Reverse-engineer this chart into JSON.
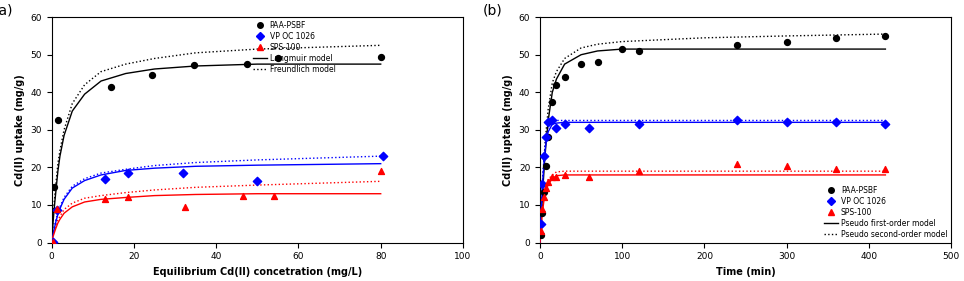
{
  "fig_width": 9.64,
  "fig_height": 2.81,
  "dpi": 100,
  "plot_a": {
    "label": "(a)",
    "xlabel": "Equilibrium Cd(II) concetration (mg/L)",
    "ylabel": "Cd(II) uptake (mg/g)",
    "xlim": [
      0,
      100
    ],
    "ylim": [
      0,
      60
    ],
    "xticks": [
      0,
      20,
      40,
      60,
      80,
      100
    ],
    "yticks": [
      0,
      10,
      20,
      30,
      40,
      50,
      60
    ],
    "black_dots_x": [
      0.5,
      1.5,
      14.5,
      24.5,
      34.5,
      47.5,
      55.0,
      80.0
    ],
    "black_dots_y": [
      14.8,
      32.5,
      41.3,
      44.7,
      47.3,
      47.5,
      49.2,
      49.5
    ],
    "blue_dots_x": [
      0.3,
      1.2,
      13.0,
      18.5,
      32.0,
      50.0,
      80.5
    ],
    "blue_dots_y": [
      0.2,
      8.7,
      17.0,
      18.5,
      18.5,
      16.5,
      23.0
    ],
    "red_triangles_x": [
      0.3,
      1.2,
      13.0,
      18.5,
      32.5,
      46.5,
      54.0,
      80.0
    ],
    "red_triangles_y": [
      0.1,
      9.0,
      11.5,
      12.0,
      9.5,
      12.5,
      12.5,
      19.0
    ],
    "langmuir_black_x": [
      0.0,
      0.3,
      0.6,
      1.0,
      1.5,
      2.0,
      3.0,
      5.0,
      8.0,
      12.0,
      18.0,
      25.0,
      35.0,
      50.0,
      65.0,
      80.0
    ],
    "langmuir_black_y": [
      0.0,
      5.0,
      9.0,
      13.5,
      19.0,
      23.0,
      28.5,
      35.0,
      39.5,
      43.0,
      45.0,
      46.2,
      47.0,
      47.5,
      47.5,
      47.5
    ],
    "freundlich_black_x": [
      0.0,
      0.3,
      0.6,
      1.0,
      1.5,
      2.0,
      3.0,
      5.0,
      8.0,
      12.0,
      18.0,
      25.0,
      35.0,
      50.0,
      65.0,
      80.0
    ],
    "freundlich_black_y": [
      0.0,
      6.0,
      10.5,
      15.5,
      21.0,
      24.5,
      30.0,
      37.0,
      42.0,
      45.5,
      47.5,
      49.0,
      50.5,
      51.5,
      52.0,
      52.5
    ],
    "langmuir_blue_x": [
      0.0,
      0.3,
      0.6,
      1.0,
      1.5,
      2.0,
      3.0,
      5.0,
      8.0,
      12.0,
      18.0,
      25.0,
      35.0,
      50.0,
      65.0,
      80.0
    ],
    "langmuir_blue_y": [
      0.0,
      2.0,
      3.5,
      5.5,
      7.5,
      9.0,
      11.5,
      14.5,
      16.5,
      18.0,
      19.2,
      19.8,
      20.3,
      20.6,
      20.8,
      21.0
    ],
    "freundlich_blue_x": [
      0.0,
      0.3,
      0.6,
      1.0,
      1.5,
      2.0,
      3.0,
      5.0,
      8.0,
      12.0,
      18.0,
      25.0,
      35.0,
      50.0,
      65.0,
      80.0
    ],
    "freundlich_blue_y": [
      0.0,
      2.5,
      4.0,
      6.0,
      8.0,
      9.5,
      12.0,
      15.0,
      17.0,
      18.5,
      19.5,
      20.5,
      21.3,
      22.0,
      22.5,
      23.0
    ],
    "langmuir_red_x": [
      0.0,
      0.3,
      0.6,
      1.0,
      1.5,
      2.0,
      3.0,
      5.0,
      8.0,
      12.0,
      18.0,
      25.0,
      35.0,
      50.0,
      65.0,
      80.0
    ],
    "langmuir_red_y": [
      0.0,
      1.5,
      2.5,
      3.8,
      5.2,
      6.2,
      7.8,
      9.5,
      10.8,
      11.5,
      12.0,
      12.5,
      12.8,
      13.0,
      13.0,
      13.0
    ],
    "freundlich_red_x": [
      0.0,
      0.3,
      0.6,
      1.0,
      1.5,
      2.0,
      3.0,
      5.0,
      8.0,
      12.0,
      18.0,
      25.0,
      35.0,
      50.0,
      65.0,
      80.0
    ],
    "freundlich_red_y": [
      0.0,
      1.8,
      3.0,
      4.5,
      6.0,
      7.0,
      8.8,
      10.5,
      11.8,
      12.5,
      13.3,
      14.0,
      14.7,
      15.3,
      15.8,
      16.3
    ]
  },
  "plot_b": {
    "label": "(b)",
    "xlabel": "Time (min)",
    "ylabel": "Cd(II) uptake (mg/g)",
    "xlim": [
      0,
      500
    ],
    "ylim": [
      0,
      60
    ],
    "xticks": [
      0,
      100,
      200,
      300,
      400,
      500
    ],
    "yticks": [
      0,
      10,
      20,
      30,
      40,
      50,
      60
    ],
    "black_dots_x": [
      1,
      3,
      5,
      7,
      10,
      15,
      20,
      30,
      50,
      70,
      100,
      120,
      240,
      300,
      360,
      420
    ],
    "black_dots_y": [
      2.0,
      8.0,
      13.5,
      20.5,
      28.0,
      37.5,
      42.0,
      44.0,
      47.5,
      48.0,
      51.5,
      51.0,
      52.5,
      53.5,
      54.5,
      55.0
    ],
    "blue_dots_x": [
      1,
      3,
      5,
      7,
      10,
      15,
      20,
      30,
      60,
      120,
      240,
      300,
      360,
      420
    ],
    "blue_dots_y": [
      5.0,
      15.5,
      23.0,
      28.0,
      32.0,
      32.5,
      30.5,
      31.5,
      30.5,
      31.5,
      32.5,
      32.0,
      32.0,
      31.5
    ],
    "red_triangles_x": [
      1,
      3,
      5,
      7,
      10,
      15,
      20,
      30,
      60,
      120,
      240,
      300,
      360,
      420
    ],
    "red_triangles_y": [
      3.0,
      9.0,
      12.0,
      14.5,
      16.0,
      17.5,
      17.5,
      18.0,
      17.5,
      19.0,
      21.0,
      20.5,
      19.5,
      19.5
    ],
    "pfo_black_x": [
      0,
      1,
      2,
      3,
      5,
      7,
      10,
      15,
      20,
      30,
      50,
      70,
      100,
      150,
      200,
      300,
      420
    ],
    "pfo_black_y": [
      0,
      4.5,
      8.5,
      12.5,
      19.5,
      25.5,
      32.5,
      40.0,
      43.5,
      47.5,
      50.0,
      51.0,
      51.5,
      51.5,
      51.5,
      51.5,
      51.5
    ],
    "pso_black_x": [
      0,
      1,
      2,
      3,
      5,
      7,
      10,
      15,
      20,
      30,
      50,
      70,
      100,
      150,
      200,
      300,
      420
    ],
    "pso_black_y": [
      0,
      5.5,
      10.5,
      15.0,
      22.5,
      28.5,
      35.5,
      42.5,
      45.5,
      49.0,
      51.8,
      52.8,
      53.5,
      54.0,
      54.5,
      55.0,
      55.5
    ],
    "pfo_blue_x": [
      0,
      1,
      2,
      3,
      5,
      7,
      10,
      15,
      20,
      30,
      60,
      120,
      240,
      420
    ],
    "pfo_blue_y": [
      0,
      5.5,
      10.5,
      15.0,
      21.5,
      26.0,
      29.5,
      31.5,
      31.8,
      32.0,
      32.0,
      32.0,
      32.0,
      32.0
    ],
    "pso_blue_x": [
      0,
      1,
      2,
      3,
      5,
      7,
      10,
      15,
      20,
      30,
      60,
      120,
      240,
      420
    ],
    "pso_blue_y": [
      0,
      6.0,
      11.5,
      16.0,
      23.0,
      27.5,
      31.0,
      32.5,
      32.5,
      32.5,
      32.5,
      32.5,
      32.5,
      32.5
    ],
    "pfo_red_x": [
      0,
      1,
      2,
      3,
      5,
      7,
      10,
      15,
      20,
      30,
      60,
      120,
      240,
      420
    ],
    "pfo_red_y": [
      0,
      3.0,
      5.5,
      8.0,
      11.5,
      13.5,
      15.5,
      17.0,
      17.8,
      18.0,
      18.0,
      18.0,
      18.0,
      18.0
    ],
    "pso_red_x": [
      0,
      1,
      2,
      3,
      5,
      7,
      10,
      15,
      20,
      30,
      60,
      120,
      240,
      420
    ],
    "pso_red_y": [
      0,
      3.5,
      6.5,
      9.0,
      12.5,
      14.8,
      16.8,
      18.0,
      18.8,
      19.0,
      19.0,
      19.0,
      19.0,
      19.0
    ]
  }
}
